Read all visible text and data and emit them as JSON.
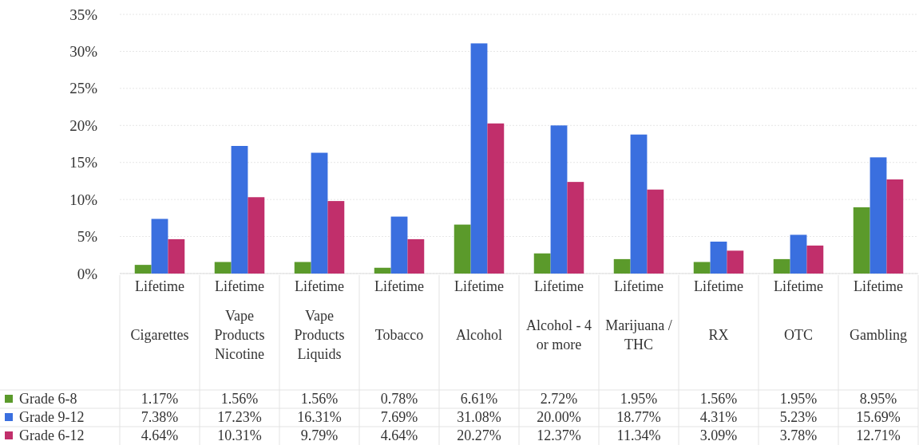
{
  "chart_data": {
    "type": "bar",
    "categories": [
      "Lifetime\nCigarettes",
      "Lifetime\nVape Products Nicotine",
      "Lifetime\nVape Products Liquids",
      "Lifetime\nTobacco",
      "Lifetime\nAlcohol",
      "Lifetime\nAlcohol - 4 or more",
      "Lifetime\nMarijuana / THC",
      "Lifetime\nRX",
      "Lifetime\nOTC",
      "Lifetime\nGambling"
    ],
    "series": [
      {
        "name": "Grade 6-8",
        "color": "#5b9a2b",
        "values": [
          1.17,
          1.56,
          1.56,
          0.78,
          6.61,
          2.72,
          1.95,
          1.56,
          1.95,
          8.95
        ],
        "value_labels": [
          "1.17%",
          "1.56%",
          "1.56%",
          "0.78%",
          "6.61%",
          "2.72%",
          "1.95%",
          "1.56%",
          "1.95%",
          "8.95%"
        ]
      },
      {
        "name": "Grade 9-12",
        "color": "#3a6fdf",
        "values": [
          7.38,
          17.23,
          16.31,
          7.69,
          31.08,
          20.0,
          18.77,
          4.31,
          5.23,
          15.69
        ],
        "value_labels": [
          "7.38%",
          "17.23%",
          "16.31%",
          "7.69%",
          "31.08%",
          "20.00%",
          "18.77%",
          "4.31%",
          "5.23%",
          "15.69%"
        ]
      },
      {
        "name": "Grade 6-12",
        "color": "#c12f6b",
        "values": [
          4.64,
          10.31,
          9.79,
          4.64,
          20.27,
          12.37,
          11.34,
          3.09,
          3.78,
          12.71
        ],
        "value_labels": [
          "4.64%",
          "10.31%",
          "9.79%",
          "4.64%",
          "20.27%",
          "12.37%",
          "11.34%",
          "3.09%",
          "3.78%",
          "12.71%"
        ]
      }
    ],
    "ylim": [
      0,
      35
    ],
    "yticks": [
      {
        "value": 0,
        "label": "0%"
      },
      {
        "value": 5,
        "label": "5%"
      },
      {
        "value": 10,
        "label": "10%"
      },
      {
        "value": 15,
        "label": "15%"
      },
      {
        "value": 20,
        "label": "20%"
      },
      {
        "value": 25,
        "label": "25%"
      },
      {
        "value": 30,
        "label": "30%"
      },
      {
        "value": 35,
        "label": "35%"
      }
    ],
    "grid": true,
    "legend": "bottom"
  }
}
